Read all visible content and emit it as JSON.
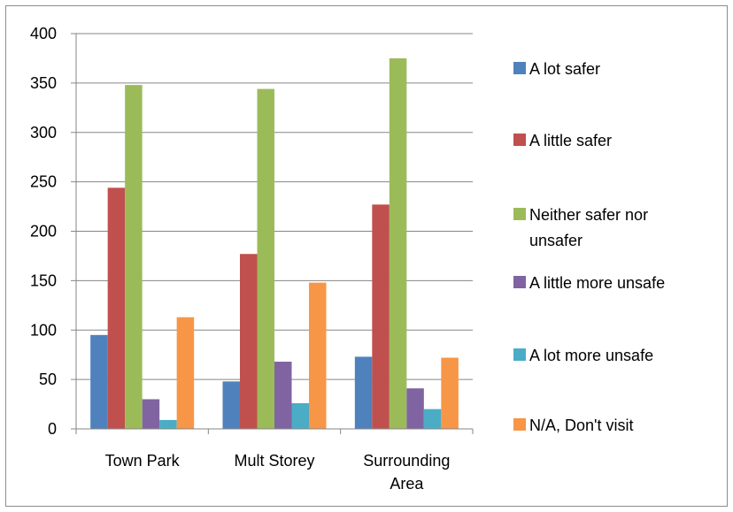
{
  "chart_data": {
    "type": "bar",
    "categories": [
      [
        "Town Park"
      ],
      [
        "Mult Storey"
      ],
      [
        "Surrounding",
        "Area"
      ]
    ],
    "ylim": [
      0,
      400
    ],
    "yticks": [
      0,
      50,
      100,
      150,
      200,
      250,
      300,
      350,
      400
    ],
    "grid": true,
    "legend_position": "right",
    "series": [
      {
        "name": [
          "A lot safer"
        ],
        "color": "#4f81bd",
        "values": [
          95,
          48,
          73
        ]
      },
      {
        "name": [
          "A little safer"
        ],
        "color": "#c0504d",
        "values": [
          244,
          177,
          227
        ]
      },
      {
        "name": [
          "Neither safer nor",
          "unsafer"
        ],
        "color": "#9bbb59",
        "values": [
          348,
          344,
          375
        ]
      },
      {
        "name": [
          "A little more unsafe"
        ],
        "color": "#8064a2",
        "values": [
          30,
          68,
          41
        ]
      },
      {
        "name": [
          "A lot more unsafe"
        ],
        "color": "#4bacc6",
        "values": [
          9,
          26,
          20
        ]
      },
      {
        "name": [
          "N/A, Don't visit"
        ],
        "color": "#f79646",
        "values": [
          113,
          148,
          72
        ]
      }
    ]
  }
}
